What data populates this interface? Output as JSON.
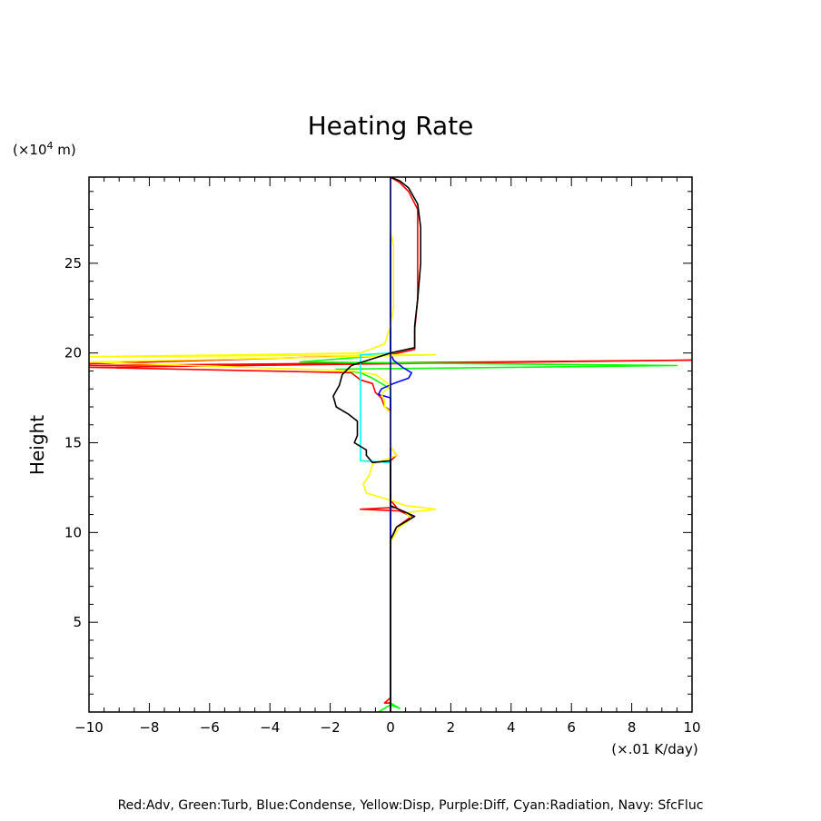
{
  "chart_data": {
    "type": "line",
    "title": "Heating Rate",
    "ylabel": "Height",
    "yunit_prefix": "(×10",
    "yunit_exp": "4",
    "yunit_suffix": " m)",
    "xunit": "(×.01 K/day)",
    "caption": "Red:Adv, Green:Turb, Blue:Condense, Yellow:Disp, Purple:Diff, Cyan:Radiation, Navy: SfcFluc",
    "xlim": [
      -10,
      10
    ],
    "ylim": [
      0,
      29.8
    ],
    "x_ticks": [
      -10,
      -8,
      -6,
      -4,
      -2,
      0,
      2,
      4,
      6,
      8,
      10
    ],
    "y_ticks": [
      5,
      10,
      15,
      20,
      25
    ],
    "x_tick_labels": [
      "−10",
      "−8",
      "−6",
      "−4",
      "−2",
      "0",
      "2",
      "4",
      "6",
      "8",
      "10"
    ],
    "y_tick_labels": [
      "5",
      "10",
      "15",
      "20",
      "25"
    ],
    "series": [
      {
        "name": "Adv",
        "color": "#ff0000",
        "points": [
          [
            0,
            0
          ],
          [
            0,
            0.5
          ],
          [
            -0.2,
            0.5
          ],
          [
            0,
            0.8
          ],
          [
            0,
            9.5
          ],
          [
            0.2,
            10.3
          ],
          [
            0.7,
            10.9
          ],
          [
            0.3,
            11.2
          ],
          [
            -1,
            11.3
          ],
          [
            0.2,
            11.4
          ],
          [
            0,
            11.8
          ],
          [
            0,
            14
          ],
          [
            0.2,
            14.3
          ],
          [
            0,
            14.8
          ],
          [
            0,
            16.8
          ],
          [
            -0.2,
            17
          ],
          [
            -0.3,
            17.5
          ],
          [
            -0.5,
            17.8
          ],
          [
            -0.6,
            18.3
          ],
          [
            -1,
            18.5
          ],
          [
            -1.3,
            18.9
          ],
          [
            -10,
            19.2
          ],
          [
            10,
            19.6
          ],
          [
            -10,
            19.3
          ],
          [
            -10,
            19.4
          ],
          [
            0,
            19.9
          ],
          [
            0.8,
            20.2
          ],
          [
            0.8,
            21.3
          ],
          [
            0.9,
            23
          ],
          [
            0.9,
            26.5
          ],
          [
            0.9,
            28
          ],
          [
            0.6,
            29
          ],
          [
            0.3,
            29.5
          ],
          [
            0,
            29.8
          ]
        ]
      },
      {
        "name": "Turb",
        "color": "#00ff00",
        "points": [
          [
            -0.4,
            0
          ],
          [
            0,
            0.4
          ],
          [
            0.3,
            0.2
          ],
          [
            0,
            0.5
          ],
          [
            0,
            18
          ],
          [
            -0.3,
            18.3
          ],
          [
            -0.6,
            18.6
          ],
          [
            -1,
            18.9
          ],
          [
            -1.8,
            19.1
          ],
          [
            9.5,
            19.3
          ],
          [
            -3,
            19.5
          ],
          [
            0,
            19.9
          ],
          [
            0,
            29.8
          ]
        ]
      },
      {
        "name": "Condense",
        "color": "#0000ff",
        "points": [
          [
            0,
            0
          ],
          [
            0,
            17.5
          ],
          [
            -0.4,
            17.7
          ],
          [
            -0.3,
            18
          ],
          [
            0.1,
            18.3
          ],
          [
            0.6,
            18.6
          ],
          [
            0.7,
            18.9
          ],
          [
            0.4,
            19.2
          ],
          [
            0.1,
            19.6
          ],
          [
            0,
            20
          ],
          [
            0,
            29.8
          ]
        ]
      },
      {
        "name": "Disp",
        "color": "#ffff00",
        "points": [
          [
            0,
            0
          ],
          [
            0,
            9.5
          ],
          [
            0.3,
            10.3
          ],
          [
            0.7,
            10.8
          ],
          [
            0.5,
            11.1
          ],
          [
            1.5,
            11.3
          ],
          [
            0.5,
            11.5
          ],
          [
            0,
            11.8
          ],
          [
            -0.8,
            12.2
          ],
          [
            -0.9,
            12.7
          ],
          [
            -0.7,
            13.2
          ],
          [
            -0.6,
            13.8
          ],
          [
            0.2,
            14.3
          ],
          [
            0,
            14.8
          ],
          [
            0,
            16.7
          ],
          [
            -0.2,
            17
          ],
          [
            -0.2,
            17.4
          ],
          [
            -0.3,
            17.7
          ],
          [
            0,
            18.2
          ],
          [
            -0.5,
            18.8
          ],
          [
            -1.2,
            19
          ],
          [
            -10,
            19.5
          ],
          [
            1.5,
            19.9
          ],
          [
            -10,
            19.8
          ],
          [
            -5,
            19.9
          ],
          [
            -1,
            20
          ],
          [
            -0.2,
            20.5
          ],
          [
            0,
            21.5
          ],
          [
            0.1,
            22.5
          ],
          [
            0.1,
            24.5
          ],
          [
            0.1,
            26
          ],
          [
            0,
            26.8
          ],
          [
            0,
            29.8
          ]
        ]
      },
      {
        "name": "Radiation",
        "color": "#00ffff",
        "points": [
          [
            0,
            13.9
          ],
          [
            -1,
            14
          ],
          [
            -1,
            19.9
          ],
          [
            0,
            20
          ]
        ]
      },
      {
        "name": "SfcFluc",
        "color": "#000080",
        "points": [
          [
            0,
            0
          ],
          [
            0,
            29.8
          ]
        ]
      },
      {
        "name": "",
        "color": "#000000",
        "points": [
          [
            0,
            0
          ],
          [
            0,
            9.6
          ],
          [
            0.2,
            10.3
          ],
          [
            0.8,
            10.9
          ],
          [
            0.4,
            11.2
          ],
          [
            0,
            11.5
          ],
          [
            0,
            14
          ],
          [
            -0.6,
            13.9
          ],
          [
            -0.8,
            14.3
          ],
          [
            -0.8,
            14.6
          ],
          [
            -1.2,
            15
          ],
          [
            -1.1,
            15.4
          ],
          [
            -1.1,
            16.2
          ],
          [
            -1.4,
            16.6
          ],
          [
            -1.8,
            17
          ],
          [
            -1.9,
            17.6
          ],
          [
            -1.7,
            18.2
          ],
          [
            -1.6,
            18.8
          ],
          [
            -1.3,
            19.3
          ],
          [
            0,
            20
          ],
          [
            0.8,
            20.3
          ],
          [
            0.8,
            21.5
          ],
          [
            0.9,
            23
          ],
          [
            1,
            25
          ],
          [
            1,
            27
          ],
          [
            0.9,
            28.3
          ],
          [
            0.6,
            29.2
          ],
          [
            0.3,
            29.6
          ],
          [
            0,
            29.8
          ]
        ]
      }
    ]
  }
}
